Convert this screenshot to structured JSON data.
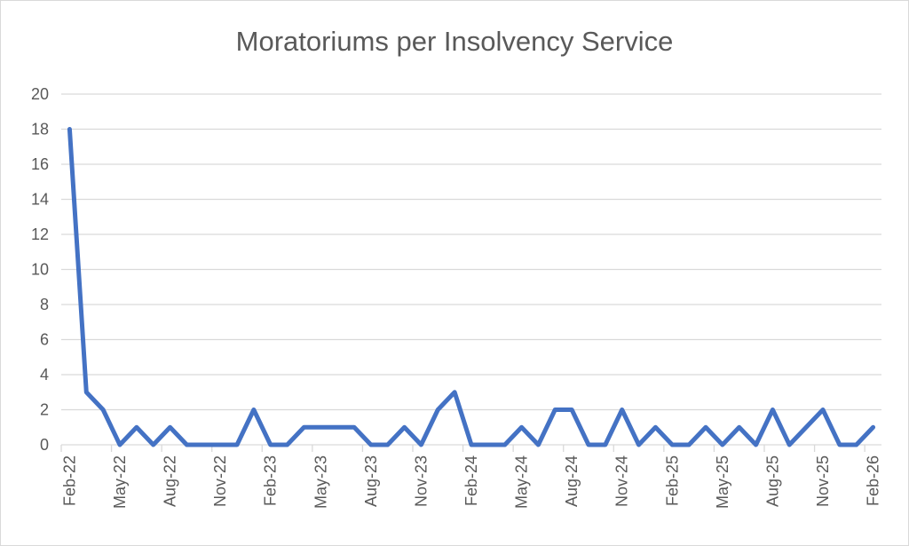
{
  "chart_data": {
    "type": "line",
    "title": "Moratoriums per Insolvency Service",
    "xlabel": "",
    "ylabel": "",
    "ylim": [
      0,
      20
    ],
    "yticks": [
      0,
      2,
      4,
      6,
      8,
      10,
      12,
      14,
      16,
      18,
      20
    ],
    "grid": true,
    "legend": "none",
    "x": [
      "Feb-22",
      "Mar-22",
      "Apr-22",
      "May-22",
      "Jun-22",
      "Jul-22",
      "Aug-22",
      "Sep-22",
      "Oct-22",
      "Nov-22",
      "Dec-22",
      "Jan-23",
      "Feb-23",
      "Mar-23",
      "Apr-23",
      "May-23",
      "Jun-23",
      "Jul-23",
      "Aug-23",
      "Sep-23",
      "Oct-23",
      "Nov-23",
      "Dec-23",
      "Jan-24",
      "Feb-24",
      "Mar-24",
      "Apr-24",
      "May-24",
      "Jun-24",
      "Jul-24",
      "Aug-24",
      "Sep-24",
      "Oct-24",
      "Nov-24",
      "Dec-24",
      "Jan-25",
      "Feb-25",
      "Mar-25",
      "Apr-25",
      "May-25",
      "Jun-25",
      "Jul-25",
      "Aug-25",
      "Sep-25",
      "Oct-25",
      "Nov-25",
      "Dec-25",
      "Jan-26",
      "Feb-26"
    ],
    "xtick_labels": [
      "Feb-22",
      "May-22",
      "Aug-22",
      "Nov-22",
      "Feb-23",
      "May-23",
      "Aug-23",
      "Nov-23",
      "Feb-24",
      "May-24",
      "Aug-24",
      "Nov-24",
      "Feb-25",
      "May-25",
      "Aug-25",
      "Nov-25",
      "Feb-26"
    ],
    "series": [
      {
        "name": "Moratoriums",
        "color": "#4472C4",
        "values": [
          18,
          3,
          2,
          0,
          1,
          0,
          1,
          0,
          0,
          0,
          0,
          2,
          0,
          0,
          1,
          1,
          1,
          1,
          0,
          0,
          1,
          0,
          2,
          3,
          0,
          0,
          0,
          1,
          0,
          2,
          2,
          0,
          0,
          2,
          0,
          1,
          0,
          0,
          1,
          0,
          1,
          0,
          2,
          0,
          1,
          2,
          0,
          0,
          1
        ]
      }
    ]
  }
}
